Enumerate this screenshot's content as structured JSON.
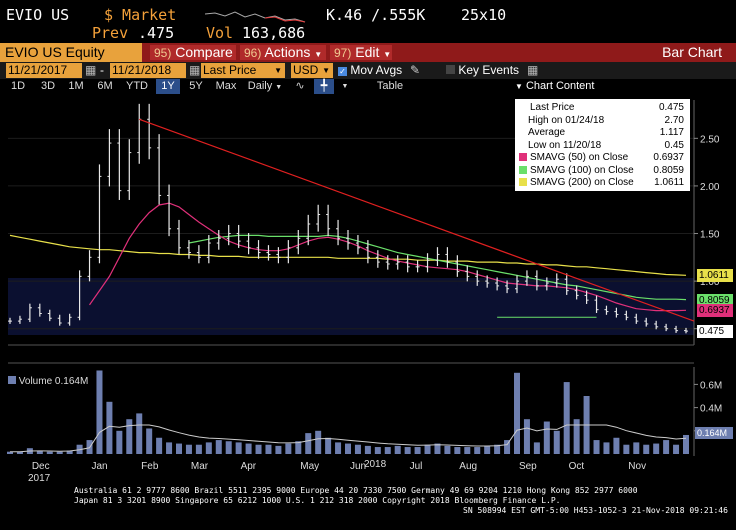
{
  "topbar": {
    "ticker": "EVIO US",
    "market_label": "$ Market",
    "last_prefix": "Prev",
    "last_value": ".475",
    "vol_label": "Vol",
    "vol_value": "163,686",
    "bid_ask": "K.46 /.555K",
    "size": "25x10"
  },
  "cmdbar": {
    "security": "EVIO US Equity",
    "compare_num": "95)",
    "compare_label": "Compare",
    "actions_num": "96)",
    "actions_label": "Actions",
    "edit_num": "97)",
    "edit_label": "Edit",
    "title": "Bar Chart"
  },
  "options": {
    "start_date": "11/21/2017",
    "end_date": "11/21/2018",
    "field": "Last Price",
    "currency": "USD",
    "mov_avgs_label": "Mov Avgs",
    "key_events_label": "Key Events"
  },
  "range": {
    "buttons": [
      "1D",
      "3D",
      "1M",
      "6M",
      "YTD",
      "1Y",
      "5Y",
      "Max"
    ],
    "active": "1Y",
    "period": "Daily",
    "table_label": "Table",
    "chart_content_label": "Chart Content"
  },
  "legend": {
    "rows": [
      {
        "label": "Last Price",
        "value": "0.475",
        "color": "#ffffff"
      },
      {
        "label": "High on 01/24/18",
        "value": "2.70",
        "color": ""
      },
      {
        "label": "Average",
        "value": "1.117",
        "color": ""
      },
      {
        "label": "Low on 11/20/18",
        "value": "0.45",
        "color": ""
      },
      {
        "label": "SMAVG (50)  on Close",
        "value": "0.6937",
        "color": "#e0307a"
      },
      {
        "label": "SMAVG (100)  on Close",
        "value": "0.8059",
        "color": "#6adf6a"
      },
      {
        "label": "SMAVG (200)  on Close",
        "value": "1.0611",
        "color": "#e8e04a"
      }
    ]
  },
  "price_tags": [
    {
      "value": "1.0611",
      "color": "#e8e04a"
    },
    {
      "value": "0.8059",
      "color": "#6adf6a"
    },
    {
      "value": "0.6937",
      "color": "#e0307a"
    },
    {
      "value": "0.475",
      "color": "#ffffff"
    }
  ],
  "volume_label": "Volume",
  "volume_value": "0.164M",
  "volume_tag": "0.164M",
  "footer": {
    "line1": "Australia 61 2 9777 8600 Brazil 5511 2395 9000 Europe 44 20 7330 7500 Germany 49 69 9204 1210 Hong Kong 852 2977 6000",
    "line2": "Japan 81 3 3201 8900        Singapore 65 6212 1000        U.S. 1 212 318 2000             Copyright 2018 Bloomberg Finance L.P.",
    "line3": "SN 508994 EST  GMT-5:00 H453-1052-3 21-Nov-2018 09:21:46"
  },
  "chart_data": {
    "type": "line",
    "price_axis": {
      "ticks": [
        "2.50",
        "2.00",
        "1.50",
        "1.00",
        "0.50"
      ],
      "ylim": [
        0.35,
        2.85
      ]
    },
    "volume_axis": {
      "ticks": [
        "0.6M",
        "0.4M",
        "0.2M"
      ],
      "ylim": [
        0,
        0.75
      ]
    },
    "x_ticks": [
      "Dec",
      "Jan",
      "Feb",
      "Mar",
      "Apr",
      "May",
      "Jun",
      "Jul",
      "Aug",
      "Sep",
      "Oct",
      "Nov"
    ],
    "year_labels": [
      "2017",
      "2018"
    ],
    "price": [
      0.58,
      0.6,
      0.72,
      0.66,
      0.61,
      0.56,
      0.62,
      1.05,
      1.25,
      2.1,
      2.45,
      1.95,
      2.35,
      2.7,
      2.4,
      1.9,
      1.55,
      1.35,
      1.3,
      1.25,
      1.4,
      1.45,
      1.5,
      1.42,
      1.35,
      1.3,
      1.28,
      1.25,
      1.35,
      1.45,
      1.6,
      1.7,
      1.55,
      1.45,
      1.4,
      1.35,
      1.25,
      1.2,
      1.18,
      1.2,
      1.15,
      1.15,
      1.22,
      1.28,
      1.2,
      1.1,
      1.05,
      1.0,
      0.98,
      0.95,
      0.92,
      1.0,
      1.05,
      0.95,
      0.98,
      1.02,
      0.9,
      0.85,
      0.8,
      0.7,
      0.68,
      0.65,
      0.62,
      0.58,
      0.55,
      0.52,
      0.5,
      0.48,
      0.475
    ],
    "sma50": [
      null,
      null,
      null,
      null,
      null,
      null,
      null,
      null,
      0.75,
      0.9,
      1.05,
      1.25,
      1.45,
      1.6,
      1.72,
      1.8,
      1.82,
      1.78,
      1.7,
      1.62,
      1.55,
      1.48,
      1.42,
      1.38,
      1.35,
      1.33,
      1.32,
      1.32,
      1.34,
      1.38,
      1.42,
      1.45,
      1.46,
      1.44,
      1.41,
      1.37,
      1.32,
      1.28,
      1.24,
      1.21,
      1.19,
      1.17,
      1.15,
      1.14,
      1.13,
      1.12,
      1.1,
      1.07,
      1.04,
      1.01,
      0.98,
      0.97,
      0.96,
      0.95,
      0.95,
      0.94,
      0.93,
      0.91,
      0.88,
      0.85,
      0.81,
      0.77,
      0.74,
      0.71,
      0.7,
      0.69,
      0.69,
      0.69,
      0.6937
    ],
    "sma100": [
      null,
      null,
      null,
      null,
      null,
      null,
      null,
      null,
      null,
      null,
      null,
      null,
      null,
      null,
      null,
      null,
      null,
      null,
      1.4,
      1.42,
      1.44,
      1.46,
      1.47,
      1.48,
      1.48,
      1.48,
      1.47,
      1.47,
      1.47,
      1.47,
      1.47,
      1.47,
      1.48,
      1.47,
      1.45,
      1.42,
      1.39,
      1.36,
      1.33,
      1.3,
      1.28,
      1.26,
      1.24,
      1.22,
      1.2,
      1.18,
      1.16,
      1.14,
      1.12,
      1.1,
      1.08,
      1.06,
      1.04,
      1.02,
      1.0,
      0.98,
      0.96,
      0.95,
      0.93,
      0.91,
      0.89,
      0.87,
      0.85,
      0.83,
      0.82,
      0.81,
      0.81,
      0.81,
      0.8059
    ],
    "sma200": [
      1.48,
      1.46,
      1.44,
      1.42,
      1.4,
      1.38,
      1.36,
      1.35,
      1.34,
      1.33,
      1.33,
      1.32,
      1.31,
      1.3,
      1.3,
      1.29,
      1.29,
      1.28,
      1.28,
      1.27,
      1.27,
      1.26,
      1.26,
      1.26,
      1.25,
      1.25,
      1.25,
      1.25,
      1.25,
      1.25,
      1.25,
      1.25,
      1.25,
      1.24,
      1.24,
      1.24,
      1.24,
      1.24,
      1.23,
      1.23,
      1.23,
      1.22,
      1.22,
      1.22,
      1.21,
      1.21,
      1.21,
      1.2,
      1.2,
      1.2,
      1.19,
      1.19,
      1.18,
      1.18,
      1.17,
      1.17,
      1.16,
      1.15,
      1.15,
      1.14,
      1.13,
      1.12,
      1.11,
      1.1,
      1.09,
      1.08,
      1.07,
      1.065,
      1.0611
    ],
    "volume": [
      0.02,
      0.02,
      0.05,
      0.03,
      0.02,
      0.02,
      0.03,
      0.08,
      0.12,
      0.72,
      0.45,
      0.2,
      0.3,
      0.35,
      0.22,
      0.14,
      0.1,
      0.09,
      0.08,
      0.08,
      0.1,
      0.12,
      0.11,
      0.1,
      0.09,
      0.08,
      0.08,
      0.07,
      0.09,
      0.11,
      0.18,
      0.2,
      0.14,
      0.1,
      0.09,
      0.08,
      0.07,
      0.06,
      0.06,
      0.07,
      0.06,
      0.06,
      0.08,
      0.09,
      0.07,
      0.06,
      0.06,
      0.06,
      0.07,
      0.08,
      0.12,
      0.7,
      0.3,
      0.1,
      0.28,
      0.2,
      0.62,
      0.3,
      0.5,
      0.12,
      0.1,
      0.14,
      0.08,
      0.1,
      0.08,
      0.09,
      0.12,
      0.08,
      0.164
    ],
    "trendline": {
      "from": [
        13,
        2.7
      ],
      "to": [
        68,
        0.58
      ]
    },
    "support_line": {
      "from": [
        49,
        0.62
      ],
      "to": [
        59,
        0.62
      ]
    }
  }
}
